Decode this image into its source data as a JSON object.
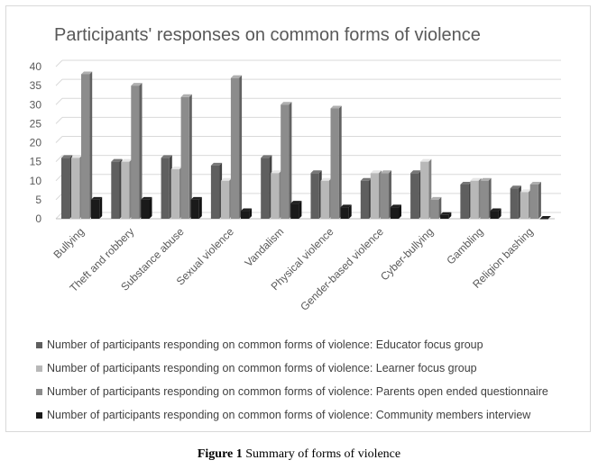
{
  "chart_data": {
    "type": "bar",
    "title": "Participants' responses on common forms of violence",
    "categories": [
      "Bullying",
      "Theft and robbery",
      "Substance abuse",
      "Sexual violence",
      "Vandalism",
      "Physical violence",
      "Gender-based violence",
      "Cyber-bullying",
      "Gambling",
      "Religion bashing"
    ],
    "series": [
      {
        "name": "Number of participants responding on common forms of violence: Educator focus group",
        "values": [
          16,
          15,
          16,
          14,
          16,
          12,
          10,
          12,
          9,
          8
        ],
        "color": "#5f5f5f"
      },
      {
        "name": "Number of participants responding on common forms of violence: Learner focus group",
        "values": [
          16,
          15,
          13,
          10,
          12,
          10,
          12,
          15,
          10,
          7
        ],
        "color": "#b8b8b8"
      },
      {
        "name": "Number of participants responding on common forms of violence: Parents open ended questionnaire",
        "values": [
          38,
          35,
          32,
          37,
          30,
          29,
          12,
          5,
          10,
          9
        ],
        "color": "#8c8c8c"
      },
      {
        "name": "Number of participants responding on common forms of violence: Community members interview",
        "values": [
          5,
          5,
          5,
          2,
          4,
          3,
          3,
          1,
          2,
          0
        ],
        "color": "#1a1a1a"
      }
    ],
    "ylim": [
      0,
      40
    ],
    "yticks": [
      0,
      5,
      10,
      15,
      20,
      25,
      30,
      35,
      40
    ],
    "grid": true,
    "legend_position": "bottom"
  },
  "caption": {
    "label": "Figure 1",
    "text": "Summary of forms of violence"
  }
}
